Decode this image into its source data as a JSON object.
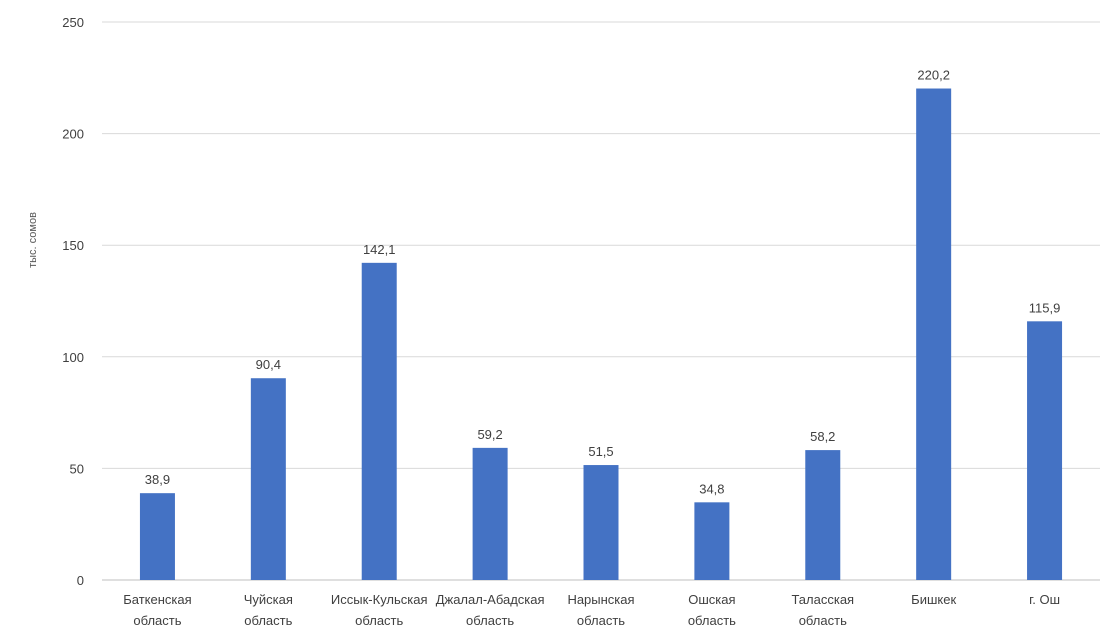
{
  "chart_data": {
    "type": "bar",
    "title": "",
    "xlabel": "",
    "ylabel": "тыс. сомов",
    "ylim": [
      0,
      250
    ],
    "yticks": [
      0,
      50,
      100,
      150,
      200,
      250
    ],
    "grid": true,
    "legend": "none",
    "bar_color": "#4472C4",
    "categories": [
      [
        "Баткенская",
        "область"
      ],
      [
        "Чуйская",
        "область"
      ],
      [
        "Иссык-Кульская",
        "область"
      ],
      [
        "Джалал-Абадская",
        "область"
      ],
      [
        "Нарынская",
        "область"
      ],
      [
        "Ошская",
        "область"
      ],
      [
        "Таласская",
        "область"
      ],
      [
        "Бишкек"
      ],
      [
        "г. Ош"
      ]
    ],
    "values": [
      38.9,
      90.4,
      142.1,
      59.2,
      51.5,
      34.8,
      58.2,
      220.2,
      115.9
    ],
    "value_labels": [
      "38,9",
      "90,4",
      "142,1",
      "59,2",
      "51,5",
      "34,8",
      "58,2",
      "220,2",
      "115,9"
    ]
  }
}
